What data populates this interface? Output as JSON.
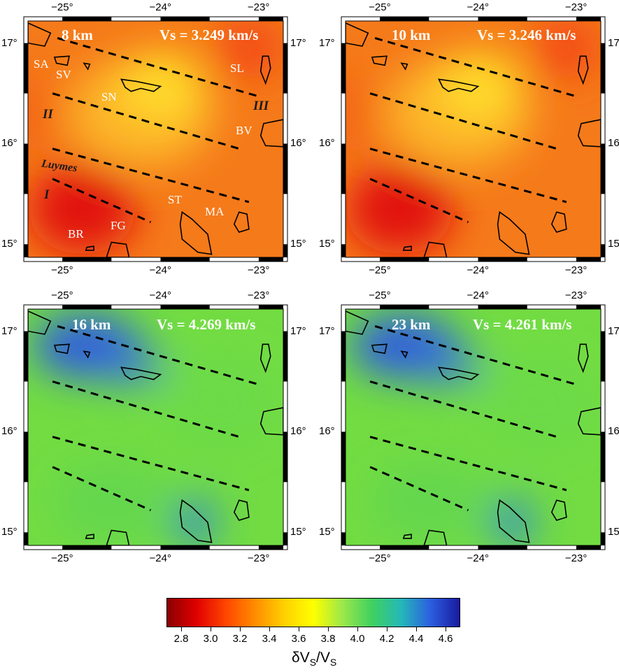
{
  "panels": [
    {
      "depth": "8 km",
      "vs": "Vs = 3.249 km/s",
      "scheme": "warm"
    },
    {
      "depth": "10 km",
      "vs": "Vs = 3.246 km/s",
      "scheme": "warm"
    },
    {
      "depth": "16 km",
      "vs": "Vs = 4.269 km/s",
      "scheme": "cool"
    },
    {
      "depth": "23 km",
      "vs": "Vs = 4.261 km/s",
      "scheme": "cool"
    }
  ],
  "axes": {
    "lon_ticks": [
      "−25°",
      "−24°",
      "−23°"
    ],
    "lat_ticks": [
      "17°",
      "16°",
      "15°"
    ]
  },
  "labels": {
    "SA": "SA",
    "SV": "SV",
    "SN": "SN",
    "SL": "SL",
    "BV": "BV",
    "ST": "ST",
    "MA": "MA",
    "BR": "BR",
    "FG": "FG",
    "I": "I",
    "II": "II",
    "III": "III",
    "Luymes": "Luymes"
  },
  "colorbar": {
    "ticks": [
      "2.8",
      "3.0",
      "3.2",
      "3.4",
      "3.6",
      "3.8",
      "4.0",
      "4.2",
      "4.4",
      "4.6"
    ],
    "min": 2.7,
    "max": 4.7,
    "title_main": "δV",
    "title_sub1": "S",
    "title_slash": "/V",
    "title_sub2": "S",
    "colors": [
      "#8b0000",
      "#e00000",
      "#ff4500",
      "#ff8c00",
      "#ffd000",
      "#ffff00",
      "#9be84a",
      "#3fd15f",
      "#25b8b8",
      "#2b5fe0",
      "#1a1aa0"
    ]
  }
}
